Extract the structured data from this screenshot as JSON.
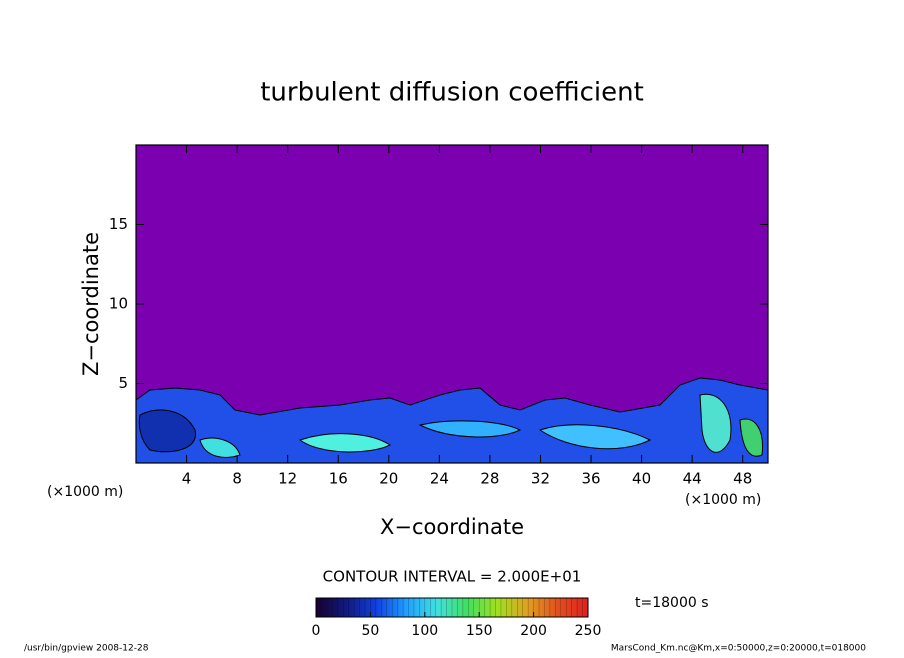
{
  "chart_data": {
    "type": "contour",
    "title": "turbulent diffusion coefficient",
    "x_label": "X−coordinate",
    "y_label": "Z−coordinate",
    "x_unit_label": "(×1000 m)",
    "xlim": [
      0,
      50
    ],
    "xticks": [
      4,
      8,
      12,
      16,
      20,
      24,
      28,
      32,
      36,
      40,
      44,
      48
    ],
    "ylim": [
      0,
      20
    ],
    "yticks": [
      5,
      10,
      15
    ],
    "background_color": "#7a00b0",
    "contour_interval_label": "CONTOUR INTERVAL = 2.000E+01",
    "time_label": "t=18000 s",
    "colorbar": {
      "lim": [
        0,
        250
      ],
      "ticks": [
        0,
        50,
        100,
        150,
        200,
        250
      ],
      "colors": [
        "#1a0030",
        "#101a80",
        "#1040e0",
        "#20a0ff",
        "#40e0e0",
        "#40e060",
        "#a0e020",
        "#e0a020",
        "#e05020",
        "#e02020"
      ]
    },
    "footer_left": "/usr/bin/gpview   2008-12-28",
    "footer_right": "MarsCond_Km.nc@Km,x=0:50000,z=0:20000,t=018000"
  }
}
